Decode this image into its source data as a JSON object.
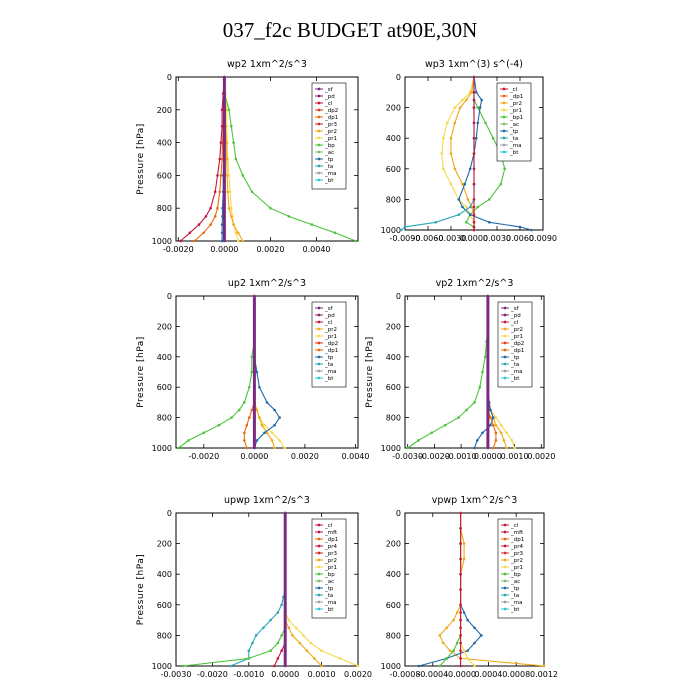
{
  "figure_title": "037_f2c  BUDGET at90E,30N",
  "colors": {
    "sf": "#7a2a82",
    "pd": "#8a1f6e",
    "cl": "#c8163b",
    "dp2": "#e03a1a",
    "dp1": "#e86a10",
    "pr4": "#c8163b",
    "pr3": "#cf2d20",
    "mft": "#c8163b",
    "pr2": "#f0a818",
    "pr1": "#f7d84a",
    "bp": "#4cc43a",
    "ac": "#7dbf6a",
    "tp": "#1f6aa8",
    "ta": "#2da7b8",
    "ma": "#a0a0a0",
    "bt": "#28c8d8"
  },
  "chart_data": [
    {
      "type": "line",
      "title": "wp2  1xm^2/s^3",
      "ylabel": "Pressure [hPa]",
      "xlim": [
        -0.0021,
        0.0058
      ],
      "ylim": [
        1000,
        0
      ],
      "xticks": [
        "-0.0020",
        "0.0000",
        "0.0020",
        "0.0040"
      ],
      "xtick_values": [
        -0.002,
        0,
        0.002,
        0.004
      ],
      "yticks": [
        "0",
        "200",
        "400",
        "600",
        "800",
        "1000"
      ],
      "legend": [
        "_sf",
        "_pd",
        "_cl",
        "_dp2",
        "_dp1",
        "_pr3",
        "_pr2",
        "_pr1",
        "_bp",
        "_ac",
        "_tp",
        "_ta",
        "_ma",
        "_bt"
      ],
      "legend_position": "top-right",
      "p": [
        0,
        100,
        200,
        300,
        400,
        500,
        600,
        700,
        800,
        850,
        900,
        950,
        1000
      ],
      "series": [
        {
          "name": "_pr1",
          "color_key": "pr1",
          "values": [
            0,
            5e-05,
            0.0001,
            0.0001,
            0.00012,
            0.00015,
            0.0002,
            0.00025,
            0.0003,
            0.00035,
            0.0004,
            0.0005,
            0.0006
          ]
        },
        {
          "name": "_pr2",
          "color_key": "pr2",
          "values": [
            0,
            0,
            5e-05,
            5e-05,
            0.0001,
            0.0001,
            0.00012,
            0.00015,
            0.0002,
            0.0003,
            0.0004,
            0.0006,
            0.0008
          ]
        },
        {
          "name": "_bp",
          "color_key": "bp",
          "values": [
            0,
            0,
            0.0002,
            0.0003,
            0.0004,
            0.0005,
            0.0008,
            0.0012,
            0.002,
            0.0028,
            0.0038,
            0.0048,
            0.0057
          ]
        },
        {
          "name": "_tp",
          "color_key": "tp",
          "values": [
            0,
            0,
            0,
            -2e-05,
            -3e-05,
            -3e-05,
            -5e-05,
            -5e-05,
            -8e-05,
            -8e-05,
            -0.0001,
            -0.0001,
            -0.0001
          ]
        },
        {
          "name": "_dp1",
          "color_key": "dp1",
          "values": [
            0,
            -2e-05,
            -3e-05,
            -5e-05,
            -8e-05,
            -0.0001,
            -0.00015,
            -0.0002,
            -0.0003,
            -0.0004,
            -0.0006,
            -0.0009,
            -0.0013
          ]
        },
        {
          "name": "_cl",
          "color_key": "cl",
          "values": [
            0,
            -5e-05,
            -0.0001,
            -0.0001,
            -0.00015,
            -0.0002,
            -0.0003,
            -0.0004,
            -0.0006,
            -0.0008,
            -0.0011,
            -0.0015,
            -0.0019
          ]
        },
        {
          "name": "_sf",
          "color_key": "sf",
          "values": [
            0,
            0,
            0,
            0,
            0,
            0,
            0,
            0,
            0,
            0,
            0,
            0,
            0
          ]
        }
      ]
    },
    {
      "type": "line",
      "title": "wp3  1xm^(3) s^(-4)",
      "ylabel": "",
      "xlim": [
        -0.009,
        0.009
      ],
      "ylim": [
        1000,
        0
      ],
      "xticks": [
        "-0.0090",
        "-0.0060",
        "-0.0030",
        "0.0000",
        "0.0030",
        "0.0060",
        "0.0090"
      ],
      "xtick_values": [
        -0.009,
        -0.006,
        -0.003,
        0,
        0.003,
        0.006,
        0.009
      ],
      "yticks": [
        "0",
        "200",
        "400",
        "600",
        "800",
        "1000"
      ],
      "legend": [
        "_cl",
        "_dp1",
        "_pr2",
        "_pr1",
        "_bp1",
        "_ac",
        "_tp",
        "_ta",
        "_ma",
        "_bt"
      ],
      "legend_position": "top-right",
      "p": [
        0,
        100,
        150,
        200,
        300,
        400,
        500,
        600,
        700,
        800,
        850,
        900,
        950,
        980,
        1000
      ],
      "series": [
        {
          "name": "_pr1",
          "color_key": "pr1",
          "values": [
            0,
            -0.0005,
            -0.0015,
            -0.0025,
            -0.0035,
            -0.004,
            -0.0042,
            -0.004,
            -0.003,
            -0.002,
            -0.001,
            -0.0005,
            0,
            0,
            0
          ]
        },
        {
          "name": "_pr2",
          "color_key": "pr2",
          "values": [
            0,
            -0.0003,
            -0.001,
            -0.0018,
            -0.0025,
            -0.003,
            -0.003,
            -0.0025,
            -0.0015,
            -0.0008,
            -0.0003,
            0,
            0,
            0,
            0
          ]
        },
        {
          "name": "_bp1",
          "color_key": "bp",
          "values": [
            0,
            0,
            0,
            0.0005,
            0.0015,
            0.0025,
            0.0035,
            0.004,
            0.0035,
            0.002,
            0.0005,
            -0.0005,
            -0.001,
            0,
            0
          ]
        },
        {
          "name": "_tp",
          "color_key": "tp",
          "values": [
            0,
            0.0003,
            0.001,
            0.0008,
            0.0005,
            0.0003,
            0,
            -0.0005,
            -0.0012,
            -0.002,
            -0.0015,
            -0.0005,
            0.002,
            0.006,
            0.0075
          ]
        },
        {
          "name": "_ta",
          "color_key": "ta",
          "values": [
            0,
            0,
            0,
            0,
            0,
            0,
            0,
            0,
            0,
            0,
            -0.0005,
            -0.002,
            -0.005,
            -0.009,
            -0.0095
          ]
        },
        {
          "name": "_cl",
          "color_key": "cl",
          "values": [
            0,
            0,
            0,
            0,
            0,
            0,
            0,
            0,
            0,
            0,
            0,
            0,
            0,
            0,
            0
          ]
        }
      ]
    },
    {
      "type": "line",
      "title": "up2  1xm^2/s^3",
      "ylabel": "Pressure [hPa]",
      "xlim": [
        -0.0031,
        0.0041
      ],
      "ylim": [
        1000,
        0
      ],
      "xticks": [
        "-0.0020",
        "0.0000",
        "0.0020",
        "0.0040"
      ],
      "xtick_values": [
        -0.002,
        0,
        0.002,
        0.004
      ],
      "yticks": [
        "0",
        "200",
        "400",
        "600",
        "800",
        "1000"
      ],
      "legend": [
        "_sf",
        "_pd",
        "_cl",
        "_pr2",
        "_pr1",
        "_dp2",
        "_dp1",
        "_tp",
        "_ta",
        "_ma",
        "_bt"
      ],
      "legend_position": "top-right",
      "p": [
        0,
        100,
        200,
        300,
        400,
        500,
        600,
        700,
        750,
        800,
        850,
        900,
        950,
        1000
      ],
      "series": [
        {
          "name": "_dp2",
          "color_key": "bp",
          "values": [
            0,
            0,
            0,
            0,
            -0.0001,
            -0.0001,
            -0.0002,
            -0.0004,
            -0.0006,
            -0.0009,
            -0.0014,
            -0.002,
            -0.0026,
            -0.003
          ]
        },
        {
          "name": "_pr1",
          "color_key": "pr1",
          "values": [
            0,
            0,
            0,
            0,
            0,
            0,
            0,
            0,
            0.0001,
            0.0002,
            0.0004,
            0.0007,
            0.001,
            0.0012
          ]
        },
        {
          "name": "_pr2",
          "color_key": "pr2",
          "values": [
            0,
            0,
            0,
            0,
            0,
            0,
            0,
            0,
            0.0001,
            0.0002,
            0.0003,
            0.0005,
            0.0007,
            0.0008
          ]
        },
        {
          "name": "_tp",
          "color_key": "tp",
          "values": [
            0,
            0,
            0,
            0,
            0,
            0.0001,
            0.0002,
            0.0005,
            0.0008,
            0.001,
            0.0008,
            0.0004,
            0.0001,
            0
          ]
        },
        {
          "name": "_dp1",
          "color_key": "dp1",
          "values": [
            0,
            0,
            0,
            0,
            0,
            0,
            0,
            0,
            -0.0001,
            -0.0002,
            -0.0003,
            -0.0004,
            -0.0004,
            -0.0003
          ]
        },
        {
          "name": "_sf",
          "color_key": "sf",
          "values": [
            0,
            0,
            0,
            0,
            0,
            0,
            0,
            0,
            0,
            0,
            0,
            0,
            0,
            0
          ]
        }
      ]
    },
    {
      "type": "line",
      "title": "vp2  1xm^2/s^3",
      "ylabel": "Pressure [hPa]",
      "xlim": [
        -0.0031,
        0.0021
      ],
      "ylim": [
        1000,
        0
      ],
      "xticks": [
        "-0.0030",
        "-0.0020",
        "-0.0010",
        "0.0000",
        "0.0010",
        "0.0020"
      ],
      "xtick_values": [
        -0.003,
        -0.002,
        -0.001,
        0,
        0.001,
        0.002
      ],
      "yticks": [
        "0",
        "200",
        "400",
        "600",
        "800",
        "1000"
      ],
      "legend": [
        "_sf",
        "_pd",
        "_cl",
        "_pr2",
        "_pr1",
        "_dp2",
        "_dp1",
        "_tp",
        "_ta",
        "_ma",
        "_bt"
      ],
      "legend_position": "top-right",
      "p": [
        0,
        100,
        200,
        300,
        400,
        500,
        600,
        700,
        750,
        800,
        850,
        900,
        950,
        1000
      ],
      "series": [
        {
          "name": "_dp2",
          "color_key": "bp",
          "values": [
            0,
            0,
            0,
            -5e-05,
            -0.0001,
            -0.0002,
            -0.0003,
            -0.0005,
            -0.0008,
            -0.0011,
            -0.0016,
            -0.0021,
            -0.0026,
            -0.003
          ]
        },
        {
          "name": "_pr1",
          "color_key": "pr1",
          "values": [
            0,
            0,
            0,
            0,
            0,
            0,
            0,
            5e-05,
            0.0001,
            0.0003,
            0.0005,
            0.0007,
            0.0009,
            0.001
          ]
        },
        {
          "name": "_pr2",
          "color_key": "pr2",
          "values": [
            0,
            0,
            0,
            0,
            0,
            0,
            0,
            0,
            0.0001,
            0.0002,
            0.0003,
            0.0005,
            0.0006,
            0.0007
          ]
        },
        {
          "name": "_tp",
          "color_key": "tp",
          "values": [
            0,
            0,
            0,
            0,
            0,
            0,
            0,
            5e-05,
            0.0001,
            0.0002,
            0.0001,
            -0.0002,
            -0.0004,
            -0.0005
          ]
        },
        {
          "name": "_dp1",
          "color_key": "dp1",
          "values": [
            0,
            0,
            0,
            0,
            0,
            0,
            0,
            0,
            0,
            0.0001,
            0.0002,
            0.0003,
            0.0003,
            0.0002
          ]
        },
        {
          "name": "_sf",
          "color_key": "sf",
          "values": [
            0,
            0,
            0,
            0,
            0,
            0,
            0,
            0,
            0,
            0,
            0,
            0,
            0,
            0
          ]
        }
      ]
    },
    {
      "type": "line",
      "title": "upwp  1xm^2/s^3",
      "ylabel": "Pressure [hPa]",
      "xlim": [
        -0.003,
        0.002
      ],
      "ylim": [
        1000,
        0
      ],
      "xticks": [
        "-0.0030",
        "-0.0020",
        "-0.0010",
        "0.0000",
        "0.0010",
        "0.0020"
      ],
      "xtick_values": [
        -0.003,
        -0.002,
        -0.001,
        0,
        0.001,
        0.002
      ],
      "yticks": [
        "0",
        "200",
        "400",
        "600",
        "800",
        "1000"
      ],
      "legend": [
        "_cl",
        "_mft",
        "_dp1",
        "_pr4",
        "_pr3",
        "_pr2",
        "_pr1",
        "_bp",
        "_ac",
        "_tp",
        "_ta",
        "_ma",
        "_bt"
      ],
      "legend_position": "top-right",
      "p": [
        0,
        100,
        200,
        300,
        400,
        500,
        550,
        600,
        650,
        700,
        750,
        800,
        850,
        900,
        950,
        1000
      ],
      "series": [
        {
          "name": "_tp",
          "color_key": "ta",
          "values": [
            0,
            0,
            0,
            0,
            0,
            0,
            -5e-05,
            -0.0001,
            -0.0002,
            -0.0004,
            -0.0006,
            -0.0008,
            -0.0009,
            -0.001,
            -0.001,
            -0.0015
          ]
        },
        {
          "name": "_pr1",
          "color_key": "pr1",
          "values": [
            0,
            0,
            0,
            0,
            0,
            0,
            0,
            0,
            0,
            0.0001,
            0.0003,
            0.0005,
            0.0007,
            0.001,
            0.0015,
            0.002
          ]
        },
        {
          "name": "_pr2",
          "color_key": "pr2",
          "values": [
            0,
            0,
            0,
            0,
            0,
            0,
            0,
            0,
            0,
            0,
            0.0001,
            0.0002,
            0.0004,
            0.0006,
            0.0008,
            0.001
          ]
        },
        {
          "name": "_bp",
          "color_key": "bp",
          "values": [
            0,
            0,
            0,
            0,
            0,
            0,
            0,
            0,
            0,
            0,
            0,
            -0.0001,
            -0.0002,
            -0.0004,
            -0.001,
            -0.0028
          ]
        },
        {
          "name": "_cl",
          "color_key": "cl",
          "values": [
            0,
            0,
            0,
            0,
            0,
            0,
            0,
            0,
            0,
            0,
            0,
            0,
            0,
            -0.0001,
            -0.0002,
            -0.0003
          ]
        },
        {
          "name": "_sf",
          "color_key": "sf",
          "values": [
            0,
            0,
            0,
            0,
            0,
            0,
            0,
            0,
            0,
            0,
            0,
            0,
            0,
            0,
            0,
            0
          ]
        }
      ]
    },
    {
      "type": "line",
      "title": "vpwp  1xm^2/s^3",
      "ylabel": "",
      "xlim": [
        -0.0008,
        0.0012
      ],
      "ylim": [
        1000,
        0
      ],
      "xticks": [
        "-0.0008",
        "-0.0004",
        "-0.0000",
        "0.0004",
        "0.0008",
        "0.0012"
      ],
      "xtick_values": [
        -0.0008,
        -0.0004,
        0,
        0.0004,
        0.0008,
        0.0012
      ],
      "yticks": [
        "0",
        "200",
        "400",
        "600",
        "800",
        "1000"
      ],
      "legend": [
        "_cl",
        "_mft",
        "_dp1",
        "_pr4",
        "_pr3",
        "_pr2",
        "_pr1",
        "_bp",
        "_ac",
        "_tp",
        "_ta",
        "_ma",
        "_bt"
      ],
      "legend_position": "top-right",
      "p": [
        0,
        100,
        200,
        300,
        400,
        500,
        600,
        650,
        700,
        750,
        800,
        850,
        900,
        950,
        1000
      ],
      "series": [
        {
          "name": "_pr2",
          "color_key": "pr2",
          "values": [
            0,
            0,
            5e-05,
            5e-05,
            0,
            0,
            0,
            -5e-05,
            -0.0001,
            -0.0002,
            -0.0003,
            -0.00025,
            -0.00015,
            0,
            0.0012
          ]
        },
        {
          "name": "_tp",
          "color_key": "tp",
          "values": [
            0,
            0,
            0,
            0,
            0,
            0,
            0,
            5e-05,
            0.0001,
            0.0002,
            0.0003,
            0.0002,
            0.0001,
            -0.0002,
            -0.0006
          ]
        },
        {
          "name": "_bp",
          "color_key": "bp",
          "values": [
            0,
            0,
            0,
            0,
            0,
            0,
            0,
            0,
            0,
            0,
            0,
            -5e-05,
            -0.0001,
            -0.0002,
            -0.0003
          ]
        },
        {
          "name": "_pr1",
          "color_key": "pr1",
          "values": [
            0,
            0,
            0,
            0,
            0,
            0,
            0,
            0,
            0,
            0,
            0,
            0,
            5e-05,
            0.0001,
            0.0002
          ]
        },
        {
          "name": "_cl",
          "color_key": "cl",
          "values": [
            0,
            0,
            0,
            0,
            0,
            0,
            0,
            0,
            0,
            0,
            0,
            0,
            0,
            0,
            0
          ]
        }
      ]
    }
  ]
}
